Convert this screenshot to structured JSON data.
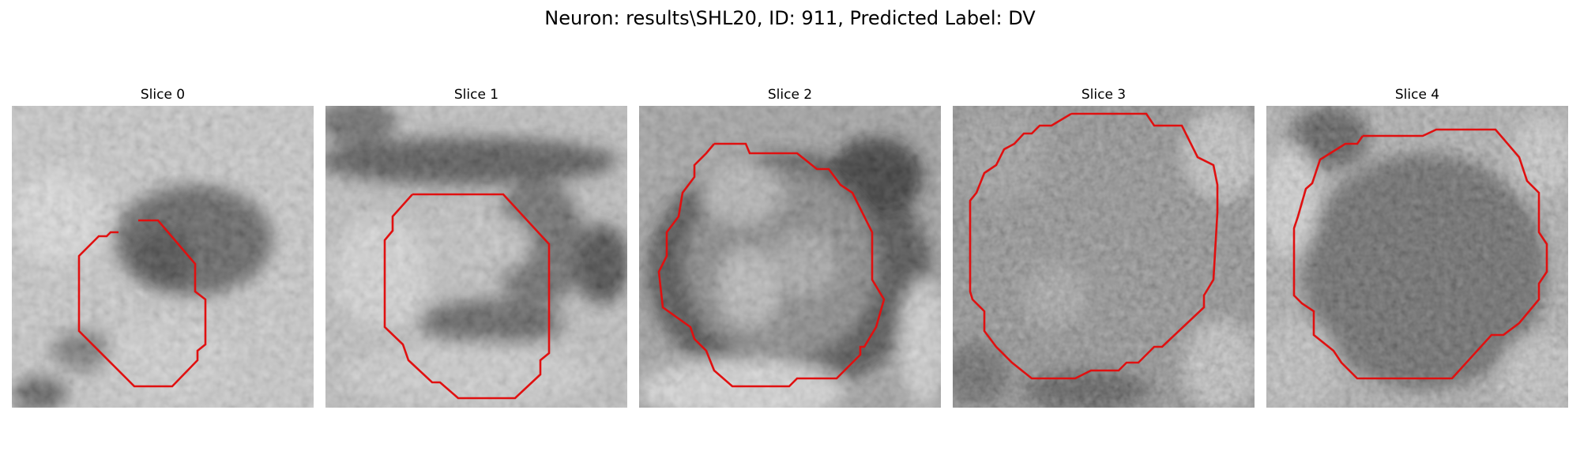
{
  "figure": {
    "title": "Neuron: results\\SHL20, ID: 911, Predicted Label: DV"
  },
  "panels": [
    {
      "title": "Slice 0"
    },
    {
      "title": "Slice 1"
    },
    {
      "title": "Slice 2"
    },
    {
      "title": "Slice 3"
    },
    {
      "title": "Slice 4"
    }
  ],
  "colors": {
    "contour": "#e01010",
    "background": "#ffffff"
  }
}
